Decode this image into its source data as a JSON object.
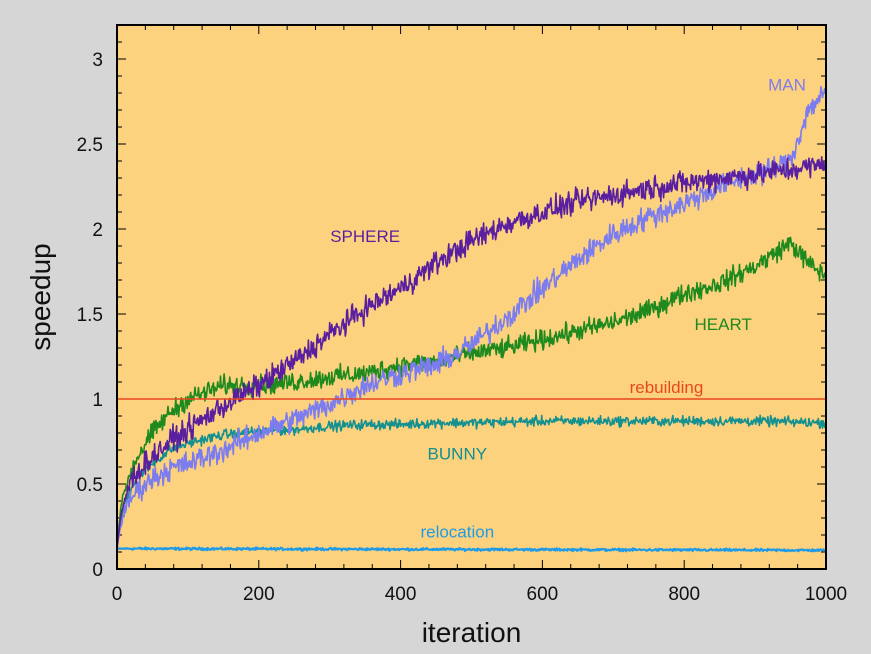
{
  "chart_data": {
    "type": "line",
    "title": "",
    "xlabel": "iteration",
    "ylabel": "speedup",
    "xlim": [
      0,
      1000
    ],
    "ylim": [
      0,
      3.2
    ],
    "x_ticks": [
      0,
      200,
      400,
      600,
      800,
      1000
    ],
    "x_tick_labels": [
      "0",
      "200",
      "400",
      "600",
      "800",
      "1000"
    ],
    "y_ticks": [
      0,
      0.5,
      1,
      1.5,
      2,
      2.5,
      3
    ],
    "y_tick_labels": [
      "0",
      "0.5",
      "1",
      "1.5",
      "2",
      "2.5",
      "3"
    ],
    "grid": false,
    "plot_background": "#fdd27e",
    "page_background": "#d6d6d6",
    "series": [
      {
        "name": "SPHERE",
        "color": "#5a1fa0",
        "label_at": [
          350,
          1.96
        ],
        "x": [
          0,
          5,
          10,
          20,
          30,
          50,
          75,
          100,
          150,
          200,
          250,
          300,
          350,
          400,
          450,
          500,
          550,
          600,
          650,
          700,
          750,
          800,
          850,
          900,
          950,
          1000
        ],
        "y": [
          0.12,
          0.3,
          0.4,
          0.52,
          0.58,
          0.66,
          0.75,
          0.82,
          0.96,
          1.08,
          1.22,
          1.38,
          1.53,
          1.65,
          1.8,
          1.93,
          2.03,
          2.1,
          2.16,
          2.2,
          2.24,
          2.27,
          2.3,
          2.32,
          2.35,
          2.38
        ],
        "noise": 0.06
      },
      {
        "name": "MAN",
        "color": "#7b7cf0",
        "label_at": [
          945,
          2.85
        ],
        "x": [
          0,
          5,
          10,
          20,
          30,
          50,
          75,
          100,
          150,
          200,
          250,
          300,
          350,
          400,
          450,
          500,
          550,
          600,
          650,
          700,
          750,
          800,
          850,
          900,
          950,
          975,
          1000
        ],
        "y": [
          0.12,
          0.25,
          0.33,
          0.42,
          0.47,
          0.53,
          0.59,
          0.62,
          0.7,
          0.8,
          0.88,
          0.97,
          1.08,
          1.15,
          1.2,
          1.32,
          1.48,
          1.65,
          1.82,
          1.97,
          2.07,
          2.15,
          2.25,
          2.32,
          2.4,
          2.7,
          2.82
        ],
        "noise": 0.06
      },
      {
        "name": "HEART",
        "color": "#1e8a1e",
        "label_at": [
          855,
          1.44
        ],
        "x": [
          0,
          5,
          10,
          20,
          30,
          50,
          75,
          100,
          150,
          200,
          250,
          300,
          350,
          400,
          450,
          500,
          550,
          600,
          650,
          700,
          750,
          800,
          850,
          900,
          925,
          950,
          975,
          1000
        ],
        "y": [
          0.12,
          0.35,
          0.45,
          0.58,
          0.67,
          0.8,
          0.92,
          1.0,
          1.08,
          1.08,
          1.1,
          1.13,
          1.15,
          1.2,
          1.22,
          1.27,
          1.3,
          1.35,
          1.4,
          1.45,
          1.52,
          1.62,
          1.68,
          1.78,
          1.85,
          1.92,
          1.8,
          1.72
        ],
        "noise": 0.05
      },
      {
        "name": "BUNNY",
        "color": "#139090",
        "label_at": [
          480,
          0.68
        ],
        "x": [
          0,
          5,
          10,
          20,
          30,
          50,
          75,
          100,
          150,
          200,
          250,
          300,
          350,
          400,
          450,
          500,
          600,
          700,
          800,
          900,
          1000
        ],
        "y": [
          0.12,
          0.28,
          0.38,
          0.48,
          0.55,
          0.62,
          0.7,
          0.74,
          0.79,
          0.81,
          0.82,
          0.84,
          0.85,
          0.85,
          0.86,
          0.86,
          0.87,
          0.87,
          0.87,
          0.87,
          0.86
        ],
        "noise": 0.025
      },
      {
        "name": "rebuilding",
        "color": "#e84820",
        "label_at": [
          775,
          1.07
        ],
        "x": [
          0,
          1000
        ],
        "y": [
          1.0,
          1.0
        ],
        "noise": 0
      },
      {
        "name": "relocation",
        "color": "#1f9be6",
        "label_at": [
          480,
          0.22
        ],
        "x": [
          0,
          1000
        ],
        "y": [
          0.12,
          0.11
        ],
        "noise": 0.006
      }
    ]
  }
}
